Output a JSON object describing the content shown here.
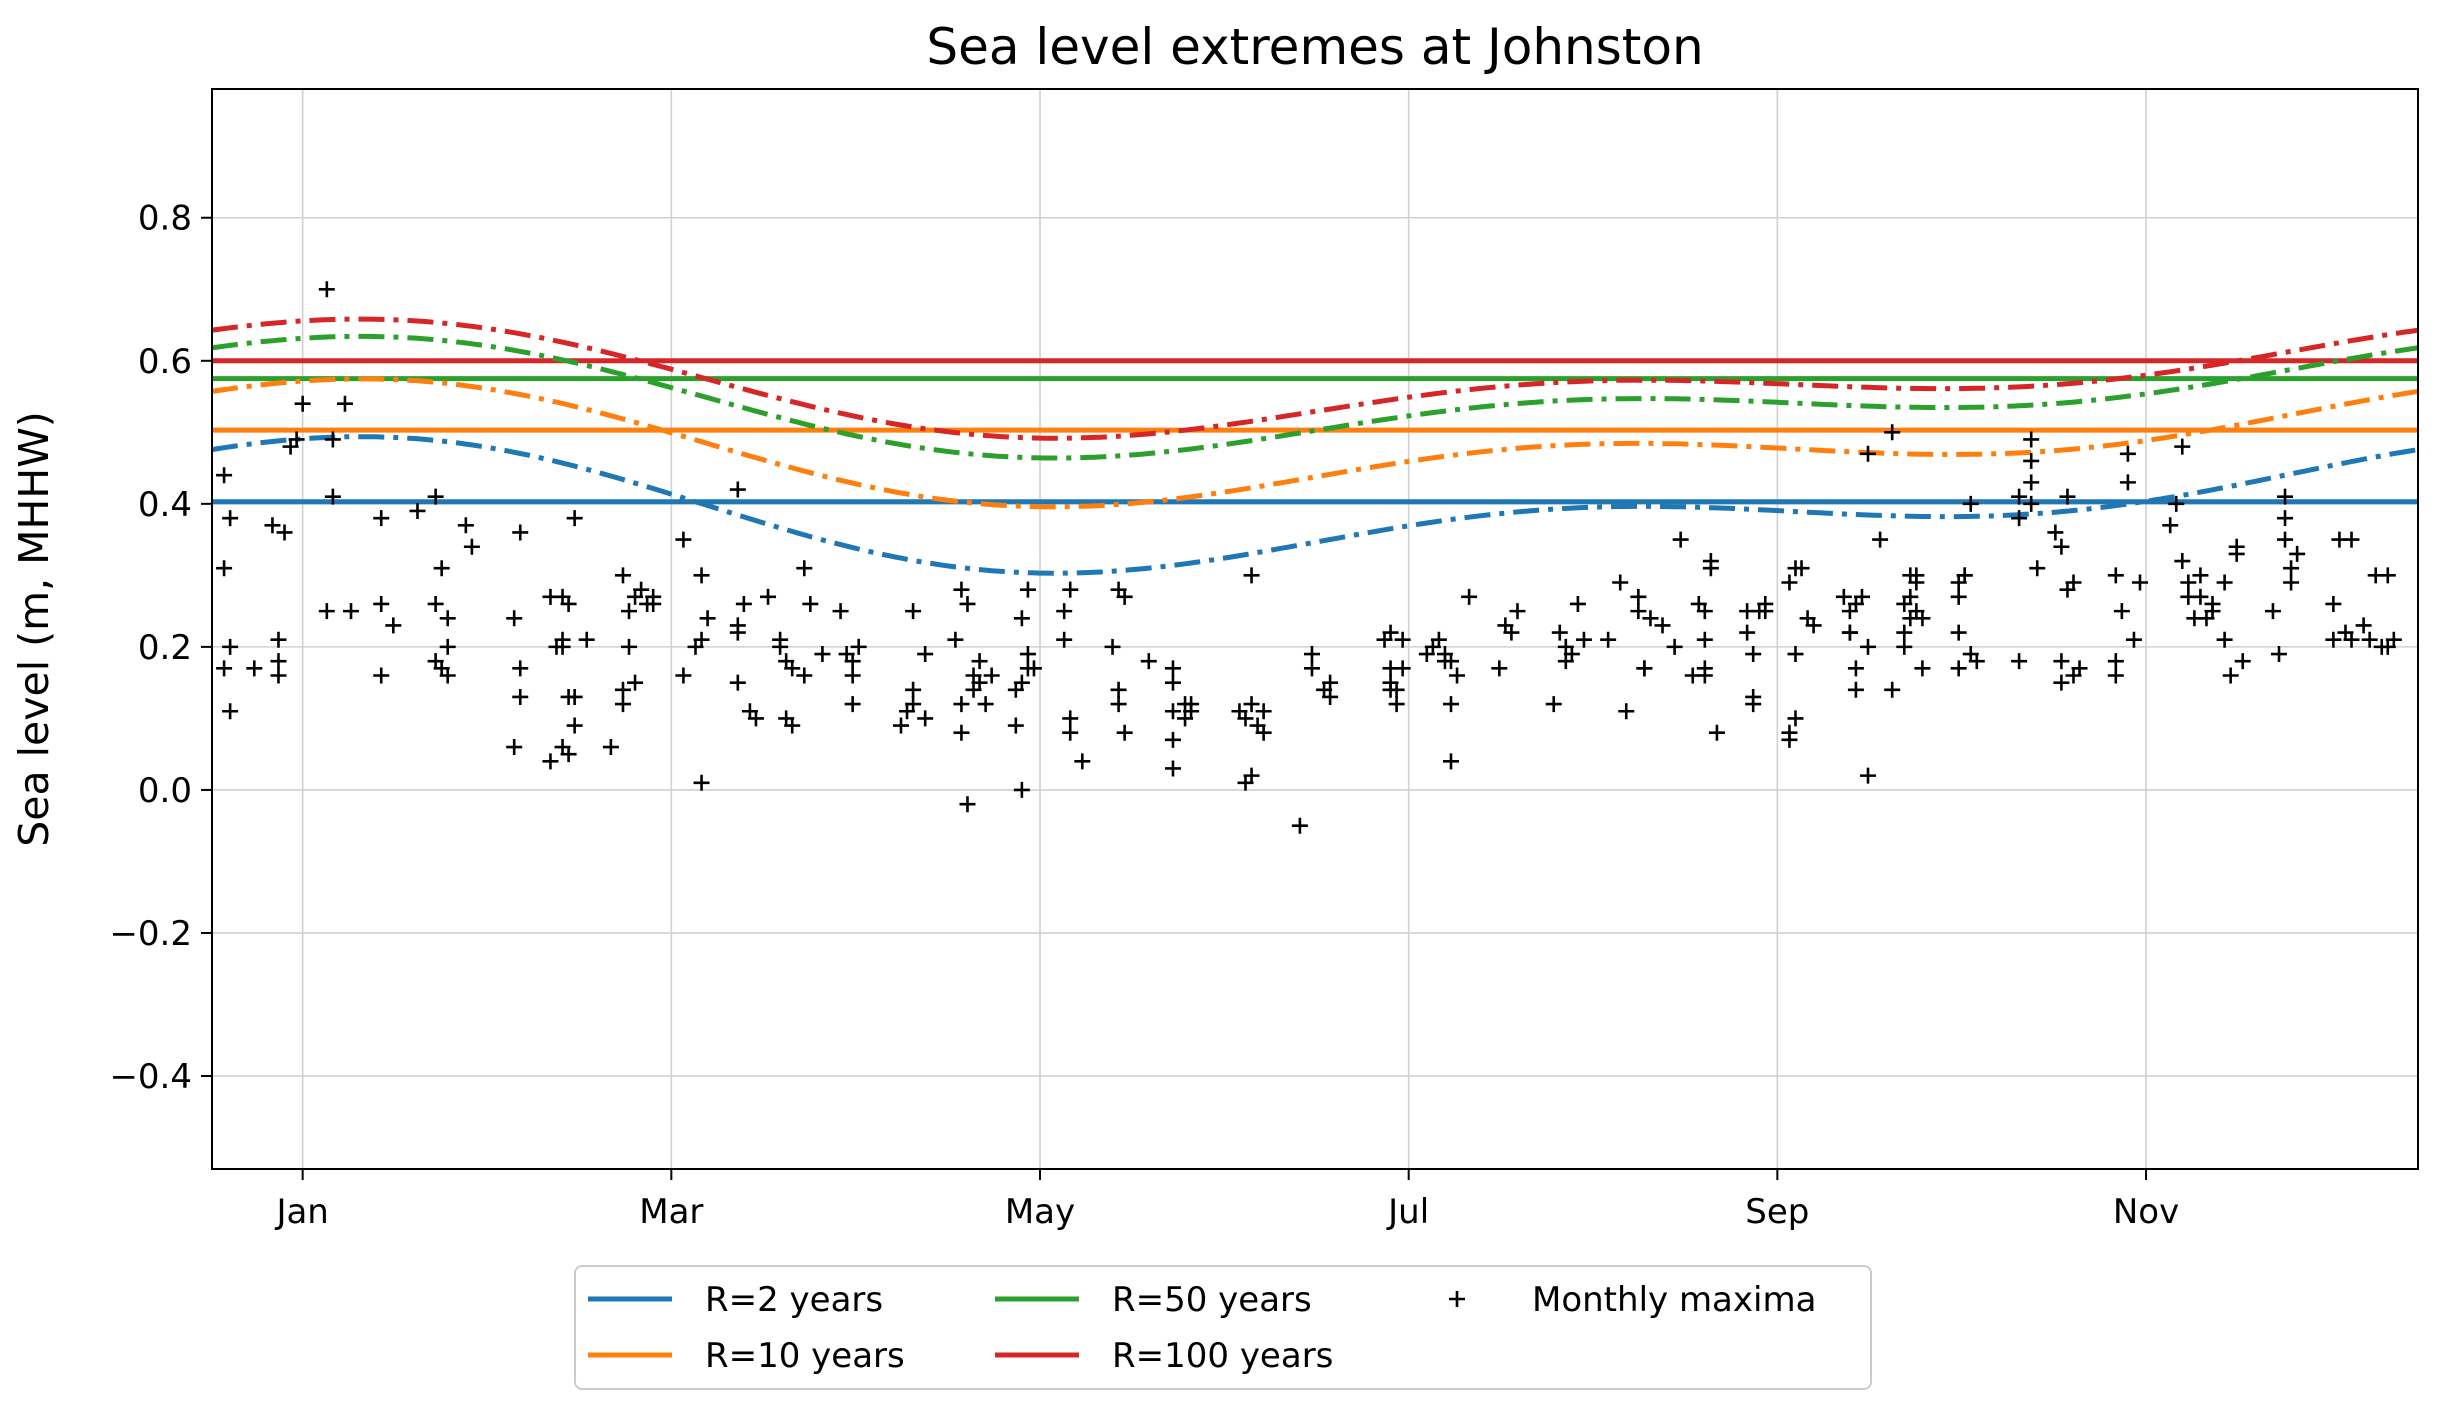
{
  "chart_data": {
    "type": "line",
    "title": "Sea level extremes at Johnston",
    "xlabel": "",
    "ylabel": "Sea level (m, MHHW)",
    "xlim": [
      -15,
      350
    ],
    "ylim": [
      -0.53,
      0.98
    ],
    "x_ticks": [
      {
        "label": "Jan",
        "value": 0
      },
      {
        "label": "Mar",
        "value": 61
      },
      {
        "label": "May",
        "value": 122
      },
      {
        "label": "Jul",
        "value": 183
      },
      {
        "label": "Sep",
        "value": 244
      },
      {
        "label": "Nov",
        "value": 305
      }
    ],
    "y_ticks": [
      {
        "label": "0.8",
        "value": 0.8
      },
      {
        "label": "0.6",
        "value": 0.6
      },
      {
        "label": "0.4",
        "value": 0.4
      },
      {
        "label": "0.2",
        "value": 0.2
      },
      {
        "label": "0.0",
        "value": 0.0
      },
      {
        "label": "−0.2",
        "value": -0.2
      },
      {
        "label": "−0.4",
        "value": -0.4
      }
    ],
    "grid": true,
    "legend_position": "bottom-center, below axes",
    "return_levels": [
      {
        "name": "R=2 years",
        "color": "#1f77b4",
        "constant": 0.403,
        "seasonal": {
          "mean": 0.395,
          "amp1": 0.065,
          "phase1": 345,
          "amp2": 0.045,
          "phase2": 20
        }
      },
      {
        "name": "R=10 years",
        "color": "#ff7f0e",
        "constant": 0.503,
        "seasonal": {
          "mean": 0.482,
          "amp1": 0.06,
          "phase1": 345,
          "amp2": 0.043,
          "phase2": 20
        }
      },
      {
        "name": "R=50 years",
        "color": "#2ca02c",
        "constant": 0.575,
        "seasonal": {
          "mean": 0.546,
          "amp1": 0.058,
          "phase1": 345,
          "amp2": 0.04,
          "phase2": 20
        }
      },
      {
        "name": "R=100 years",
        "color": "#d62728",
        "constant": 0.6,
        "seasonal": {
          "mean": 0.572,
          "amp1": 0.057,
          "phase1": 345,
          "amp2": 0.039,
          "phase2": 20
        }
      }
    ],
    "monthly_maxima": {
      "name": "Monthly maxima",
      "color": "#000000",
      "points": [
        [
          -13,
          0.44
        ],
        [
          -13,
          0.31
        ],
        [
          -13,
          0.17
        ],
        [
          -12,
          0.38
        ],
        [
          -12,
          0.2
        ],
        [
          -12,
          0.11
        ],
        [
          -8,
          0.17
        ],
        [
          -5,
          0.37
        ],
        [
          -4,
          0.21
        ],
        [
          -4,
          0.18
        ],
        [
          -4,
          0.16
        ],
        [
          -3,
          0.36
        ],
        [
          -2,
          0.48
        ],
        [
          -1,
          0.49
        ],
        [
          0,
          0.54
        ],
        [
          4,
          0.7
        ],
        [
          4,
          0.25
        ],
        [
          5,
          0.49
        ],
        [
          5,
          0.41
        ],
        [
          7,
          0.54
        ],
        [
          8,
          0.25
        ],
        [
          13,
          0.38
        ],
        [
          13,
          0.26
        ],
        [
          13,
          0.16
        ],
        [
          15,
          0.23
        ],
        [
          19,
          0.39
        ],
        [
          22,
          0.41
        ],
        [
          22,
          0.26
        ],
        [
          22,
          0.18
        ],
        [
          23,
          0.17
        ],
        [
          23,
          0.31
        ],
        [
          24,
          0.24
        ],
        [
          24,
          0.2
        ],
        [
          24,
          0.16
        ],
        [
          27,
          0.37
        ],
        [
          28,
          0.34
        ],
        [
          35,
          0.24
        ],
        [
          35,
          0.06
        ],
        [
          36,
          0.36
        ],
        [
          36,
          0.17
        ],
        [
          36,
          0.13
        ],
        [
          41,
          0.27
        ],
        [
          41,
          0.04
        ],
        [
          42,
          0.2
        ],
        [
          43,
          0.27
        ],
        [
          43,
          0.21
        ],
        [
          43,
          0.2
        ],
        [
          43,
          0.06
        ],
        [
          44,
          0.26
        ],
        [
          44,
          0.13
        ],
        [
          44,
          0.05
        ],
        [
          45,
          0.38
        ],
        [
          45,
          0.13
        ],
        [
          45,
          0.09
        ],
        [
          47,
          0.21
        ],
        [
          51,
          0.06
        ],
        [
          53,
          0.3
        ],
        [
          53,
          0.14
        ],
        [
          53,
          0.12
        ],
        [
          54,
          0.25
        ],
        [
          54,
          0.2
        ],
        [
          55,
          0.27
        ],
        [
          55,
          0.15
        ],
        [
          56,
          0.28
        ],
        [
          57,
          0.26
        ],
        [
          58,
          0.26
        ],
        [
          58,
          0.27
        ],
        [
          63,
          0.35
        ],
        [
          63,
          0.16
        ],
        [
          65,
          0.2
        ],
        [
          66,
          0.3
        ],
        [
          66,
          0.21
        ],
        [
          66,
          0.01
        ],
        [
          67,
          0.24
        ],
        [
          72,
          0.42
        ],
        [
          72,
          0.23
        ],
        [
          72,
          0.22
        ],
        [
          72,
          0.15
        ],
        [
          73,
          0.26
        ],
        [
          74,
          0.11
        ],
        [
          75,
          0.1
        ],
        [
          77,
          0.27
        ],
        [
          79,
          0.21
        ],
        [
          79,
          0.2
        ],
        [
          80,
          0.18
        ],
        [
          80,
          0.1
        ],
        [
          81,
          0.17
        ],
        [
          81,
          0.09
        ],
        [
          83,
          0.31
        ],
        [
          83,
          0.16
        ],
        [
          84,
          0.26
        ],
        [
          86,
          0.19
        ],
        [
          89,
          0.25
        ],
        [
          90,
          0.19
        ],
        [
          91,
          0.18
        ],
        [
          91,
          0.16
        ],
        [
          91,
          0.12
        ],
        [
          92,
          0.2
        ],
        [
          99,
          0.09
        ],
        [
          100,
          0.11
        ],
        [
          101,
          0.14
        ],
        [
          101,
          0.12
        ],
        [
          101,
          0.25
        ],
        [
          103,
          0.1
        ],
        [
          103,
          0.19
        ],
        [
          108,
          0.21
        ],
        [
          109,
          0.28
        ],
        [
          109,
          0.12
        ],
        [
          109,
          0.08
        ],
        [
          110,
          0.26
        ],
        [
          110,
          -0.02
        ],
        [
          111,
          0.16
        ],
        [
          111,
          0.14
        ],
        [
          112,
          0.18
        ],
        [
          112,
          0.15
        ],
        [
          113,
          0.12
        ],
        [
          114,
          0.16
        ],
        [
          118,
          0.14
        ],
        [
          118,
          0.09
        ],
        [
          119,
          0.24
        ],
        [
          119,
          0.15
        ],
        [
          119,
          0.0
        ],
        [
          120,
          0.28
        ],
        [
          120,
          0.19
        ],
        [
          120,
          0.17
        ],
        [
          121,
          0.17
        ],
        [
          126,
          0.25
        ],
        [
          126,
          0.21
        ],
        [
          127,
          0.28
        ],
        [
          127,
          0.1
        ],
        [
          127,
          0.08
        ],
        [
          129,
          0.04
        ],
        [
          134,
          0.2
        ],
        [
          135,
          0.28
        ],
        [
          135,
          0.14
        ],
        [
          135,
          0.12
        ],
        [
          136,
          0.27
        ],
        [
          136,
          0.08
        ],
        [
          140,
          0.18
        ],
        [
          144,
          0.17
        ],
        [
          144,
          0.15
        ],
        [
          144,
          0.11
        ],
        [
          144,
          0.07
        ],
        [
          144,
          0.03
        ],
        [
          146,
          0.12
        ],
        [
          146,
          0.1
        ],
        [
          147,
          0.12
        ],
        [
          147,
          0.11
        ],
        [
          155,
          0.11
        ],
        [
          156,
          0.1
        ],
        [
          156,
          0.01
        ],
        [
          157,
          0.3
        ],
        [
          157,
          0.12
        ],
        [
          157,
          0.02
        ],
        [
          158,
          0.09
        ],
        [
          159,
          0.08
        ],
        [
          159,
          0.11
        ],
        [
          165,
          -0.05
        ],
        [
          167,
          0.19
        ],
        [
          167,
          0.17
        ],
        [
          169,
          0.14
        ],
        [
          170,
          0.13
        ],
        [
          170,
          0.15
        ],
        [
          179,
          0.21
        ],
        [
          180,
          0.22
        ],
        [
          180,
          0.17
        ],
        [
          180,
          0.14
        ],
        [
          180,
          0.15
        ],
        [
          181,
          0.14
        ],
        [
          181,
          0.12
        ],
        [
          182,
          0.21
        ],
        [
          182,
          0.17
        ],
        [
          186,
          0.19
        ],
        [
          187,
          0.2
        ],
        [
          188,
          0.21
        ],
        [
          189,
          0.18
        ],
        [
          189,
          0.19
        ],
        [
          190,
          0.18
        ],
        [
          190,
          0.12
        ],
        [
          190,
          0.04
        ],
        [
          191,
          0.16
        ],
        [
          193,
          0.27
        ],
        [
          198,
          0.17
        ],
        [
          199,
          0.23
        ],
        [
          200,
          0.22
        ],
        [
          201,
          0.25
        ],
        [
          207,
          0.12
        ],
        [
          208,
          0.22
        ],
        [
          209,
          0.18
        ],
        [
          209,
          0.2
        ],
        [
          210,
          0.19
        ],
        [
          211,
          0.26
        ],
        [
          212,
          0.21
        ],
        [
          216,
          0.21
        ],
        [
          218,
          0.29
        ],
        [
          219,
          0.11
        ],
        [
          221,
          0.25
        ],
        [
          221,
          0.27
        ],
        [
          222,
          0.17
        ],
        [
          222,
          0.17
        ],
        [
          223,
          0.24
        ],
        [
          225,
          0.23
        ],
        [
          227,
          0.2
        ],
        [
          228,
          0.35
        ],
        [
          230,
          0.16
        ],
        [
          231,
          0.26
        ],
        [
          232,
          0.25
        ],
        [
          232,
          0.21
        ],
        [
          232,
          0.17
        ],
        [
          232,
          0.16
        ],
        [
          233,
          0.32
        ],
        [
          233,
          0.31
        ],
        [
          234,
          0.08
        ],
        [
          239,
          0.25
        ],
        [
          239,
          0.22
        ],
        [
          240,
          0.13
        ],
        [
          240,
          0.19
        ],
        [
          240,
          0.12
        ],
        [
          241,
          0.25
        ],
        [
          242,
          0.26
        ],
        [
          242,
          0.25
        ],
        [
          246,
          0.29
        ],
        [
          246,
          0.08
        ],
        [
          246,
          0.07
        ],
        [
          247,
          0.31
        ],
        [
          247,
          0.19
        ],
        [
          247,
          0.1
        ],
        [
          248,
          0.31
        ],
        [
          249,
          0.24
        ],
        [
          250,
          0.23
        ],
        [
          255,
          0.27
        ],
        [
          256,
          0.25
        ],
        [
          256,
          0.22
        ],
        [
          256,
          0.22
        ],
        [
          257,
          0.17
        ],
        [
          257,
          0.14
        ],
        [
          257,
          0.26
        ],
        [
          258,
          0.27
        ],
        [
          259,
          0.02
        ],
        [
          259,
          0.2
        ],
        [
          259,
          0.47
        ],
        [
          261,
          0.35
        ],
        [
          263,
          0.5
        ],
        [
          263,
          0.14
        ],
        [
          265,
          0.26
        ],
        [
          265,
          0.22
        ],
        [
          265,
          0.2
        ],
        [
          266,
          0.3
        ],
        [
          266,
          0.24
        ],
        [
          266,
          0.27
        ],
        [
          267,
          0.29
        ],
        [
          267,
          0.25
        ],
        [
          267,
          0.3
        ],
        [
          268,
          0.17
        ],
        [
          268,
          0.24
        ],
        [
          274,
          0.27
        ],
        [
          274,
          0.22
        ],
        [
          274,
          0.17
        ],
        [
          274,
          0.29
        ],
        [
          275,
          0.3
        ],
        [
          275,
          0.3
        ],
        [
          276,
          0.4
        ],
        [
          276,
          0.19
        ],
        [
          277,
          0.18
        ],
        [
          284,
          0.41
        ],
        [
          284,
          0.38
        ],
        [
          284,
          0.18
        ],
        [
          286,
          0.49
        ],
        [
          286,
          0.46
        ],
        [
          286,
          0.43
        ],
        [
          286,
          0.4
        ],
        [
          287,
          0.31
        ],
        [
          290,
          0.36
        ],
        [
          291,
          0.34
        ],
        [
          291,
          0.18
        ],
        [
          291,
          0.15
        ],
        [
          292,
          0.41
        ],
        [
          292,
          0.28
        ],
        [
          293,
          0.29
        ],
        [
          293,
          0.16
        ],
        [
          294,
          0.17
        ],
        [
          300,
          0.3
        ],
        [
          300,
          0.18
        ],
        [
          300,
          0.16
        ],
        [
          301,
          0.25
        ],
        [
          302,
          0.47
        ],
        [
          302,
          0.43
        ],
        [
          303,
          0.21
        ],
        [
          304,
          0.29
        ],
        [
          309,
          0.37
        ],
        [
          310,
          0.4
        ],
        [
          311,
          0.32
        ],
        [
          311,
          0.48
        ],
        [
          312,
          0.29
        ],
        [
          312,
          0.27
        ],
        [
          313,
          0.24
        ],
        [
          314,
          0.3
        ],
        [
          314,
          0.27
        ],
        [
          315,
          0.24
        ],
        [
          316,
          0.25
        ],
        [
          316,
          0.26
        ],
        [
          318,
          0.29
        ],
        [
          318,
          0.21
        ],
        [
          319,
          0.16
        ],
        [
          320,
          0.34
        ],
        [
          320,
          0.33
        ],
        [
          321,
          0.18
        ],
        [
          326,
          0.25
        ],
        [
          327,
          0.19
        ],
        [
          328,
          0.41
        ],
        [
          328,
          0.35
        ],
        [
          328,
          0.38
        ],
        [
          329,
          0.29
        ],
        [
          329,
          0.31
        ],
        [
          330,
          0.33
        ],
        [
          336,
          0.21
        ],
        [
          336,
          0.26
        ],
        [
          337,
          0.35
        ],
        [
          338,
          0.22
        ],
        [
          339,
          0.35
        ],
        [
          339,
          0.21
        ],
        [
          341,
          0.23
        ],
        [
          342,
          0.21
        ],
        [
          343,
          0.3
        ],
        [
          344,
          0.2
        ],
        [
          345,
          0.2
        ],
        [
          345,
          0.3
        ],
        [
          346,
          0.21
        ]
      ]
    }
  },
  "legend": {
    "items": [
      {
        "label": "R=2 years",
        "kind": "line",
        "color": "#1f77b4"
      },
      {
        "label": "R=50 years",
        "kind": "line",
        "color": "#2ca02c"
      },
      {
        "label": "Monthly maxima",
        "kind": "marker",
        "color": "#000000"
      },
      {
        "label": "R=10 years",
        "kind": "line",
        "color": "#ff7f0e"
      },
      {
        "label": "R=100 years",
        "kind": "line",
        "color": "#d62728"
      }
    ]
  }
}
